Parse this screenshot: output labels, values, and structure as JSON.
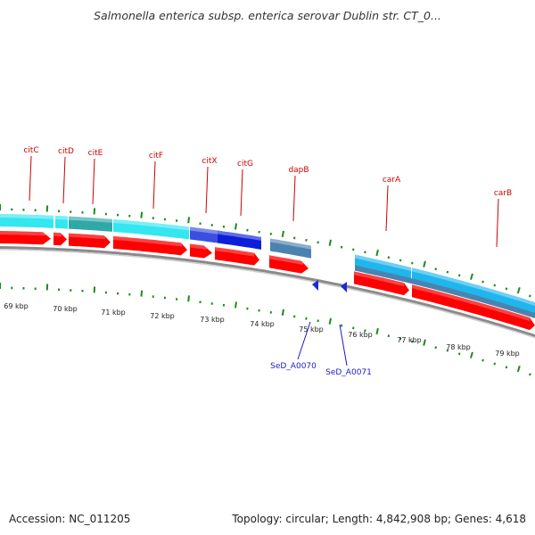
{
  "title": "Salmonella enterica subsp. enterica serovar Dublin str. CT_0...",
  "footer": {
    "accession": "Accession: NC_011205",
    "stats": "Topology: circular; Length: 4,842,908 bp; Genes: 4,618"
  },
  "colors": {
    "forward_cds": "#ff0000",
    "cyan_band": "#33e6f0",
    "teal_band": "#2fa8a8",
    "blue_band": "#0b1fd8",
    "steel_band": "#4a83b0",
    "sky_band": "#1fb6ee",
    "backbone": "#8a8a8a",
    "tick": "#1d8a1d",
    "top_label": "#cc0000",
    "bottom_label": "#1a1acc"
  },
  "top_labels": [
    "citC",
    "citD",
    "citE",
    "citF",
    "citX",
    "citG",
    "dapB",
    "carA",
    "carB"
  ],
  "bottom_labels": [
    "SeD_A0070",
    "SeD_A0071"
  ],
  "kbp_labels": [
    "69 kbp",
    "70 kbp",
    "71 kbp",
    "72 kbp",
    "73 kbp",
    "74 kbp",
    "75 kbp",
    "76 kbp",
    "77 kbp",
    "78 kbp",
    "79 kbp"
  ]
}
